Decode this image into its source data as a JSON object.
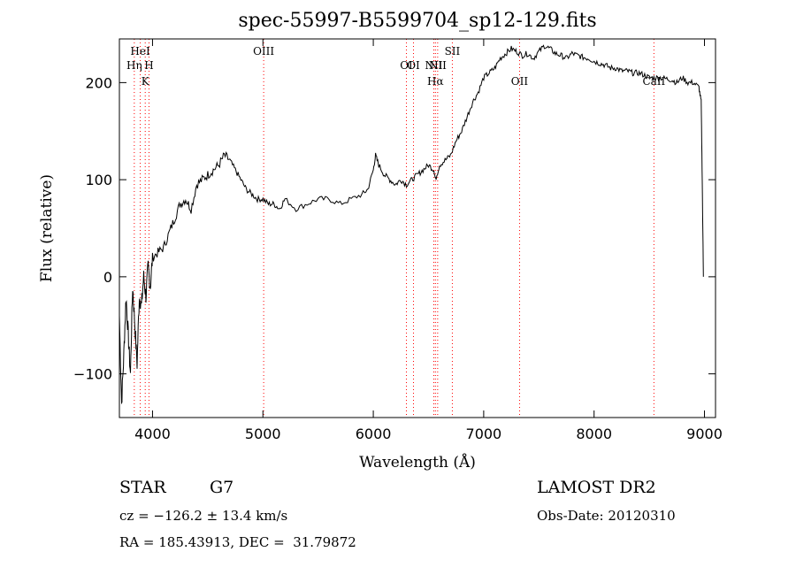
{
  "chart_data": {
    "type": "line",
    "title": "spec-55997-B5599704_sp12-129.fits",
    "xlabel": "Wavelength (Å)",
    "ylabel": "Flux (relative)",
    "xlim": [
      3700,
      9100
    ],
    "ylim": [
      -145,
      245
    ],
    "x_ticks": [
      4000,
      5000,
      6000,
      7000,
      8000,
      9000
    ],
    "y_ticks": [
      -100,
      0,
      100,
      200
    ],
    "grid": false,
    "line_color": "#000000",
    "marker_color": "#ff0000",
    "series": [
      {
        "x": [
          3700,
          3720,
          3740,
          3760,
          3780,
          3800,
          3820,
          3840,
          3860,
          3880,
          3900,
          3920,
          3940,
          3960,
          3980,
          4000,
          4050,
          4100,
          4150,
          4200,
          4250,
          4300,
          4350,
          4400,
          4450,
          4500,
          4550,
          4600,
          4650,
          4700,
          4750,
          4800,
          4850,
          4900,
          4950,
          5000,
          5050,
          5100,
          5150,
          5200,
          5300,
          5400,
          5500,
          5600,
          5700,
          5800,
          5900,
          5950,
          6000,
          6020,
          6050,
          6100,
          6150,
          6200,
          6250,
          6300,
          6350,
          6400,
          6450,
          6500,
          6550,
          6563,
          6600,
          6650,
          6700,
          6750,
          6800,
          6850,
          6900,
          6950,
          7000,
          7050,
          7100,
          7150,
          7200,
          7250,
          7300,
          7350,
          7400,
          7450,
          7500,
          7550,
          7600,
          7650,
          7700,
          7750,
          7800,
          7850,
          7900,
          7950,
          8000,
          8050,
          8100,
          8150,
          8200,
          8250,
          8300,
          8350,
          8400,
          8450,
          8500,
          8550,
          8600,
          8650,
          8700,
          8750,
          8800,
          8850,
          8900,
          8950,
          8970,
          8980,
          8990
        ],
        "y": [
          -40,
          -130,
          -80,
          -20,
          -60,
          -100,
          -10,
          -50,
          -90,
          -20,
          -30,
          0,
          -20,
          10,
          -10,
          20,
          25,
          30,
          45,
          60,
          75,
          80,
          70,
          95,
          100,
          105,
          110,
          115,
          125,
          120,
          110,
          100,
          90,
          85,
          80,
          80,
          75,
          75,
          70,
          80,
          70,
          75,
          80,
          80,
          75,
          80,
          85,
          90,
          110,
          125,
          115,
          105,
          100,
          95,
          100,
          95,
          100,
          105,
          110,
          115,
          110,
          100,
          115,
          120,
          125,
          140,
          150,
          165,
          180,
          190,
          205,
          210,
          215,
          225,
          230,
          235,
          232,
          228,
          230,
          225,
          232,
          238,
          235,
          230,
          228,
          225,
          230,
          228,
          226,
          225,
          222,
          220,
          218,
          215,
          215,
          212,
          212,
          210,
          210,
          208,
          205,
          205,
          205,
          204,
          203,
          200,
          205,
          200,
          200,
          195,
          180,
          100,
          0
        ]
      }
    ],
    "lines": [
      {
        "label": "HeI",
        "x": 3889
      },
      {
        "label": "Hη",
        "x": 3835
      },
      {
        "label": "H",
        "x": 3968
      },
      {
        "label": "K",
        "x": 3934
      },
      {
        "label": "OIII",
        "x": 5007
      },
      {
        "label": "OI",
        "x": 6300
      },
      {
        "label": "OI",
        "x": 6364
      },
      {
        "label": "NII",
        "x": 6548
      },
      {
        "label": "Hα",
        "x": 6563
      },
      {
        "label": "NII",
        "x": 6583
      },
      {
        "label": "SII",
        "x": 6716
      },
      {
        "label": "OII",
        "x": 7325
      },
      {
        "label": "CaII",
        "x": 8542
      }
    ]
  },
  "info": {
    "object_type": "STAR",
    "subclass": "G7",
    "survey": "LAMOST DR2",
    "cz": "cz = −126.2 ± 13.4 km/s",
    "obs_date": "Obs-Date: 20120310",
    "coords": "RA = 185.43913, DEC =  31.79872"
  }
}
